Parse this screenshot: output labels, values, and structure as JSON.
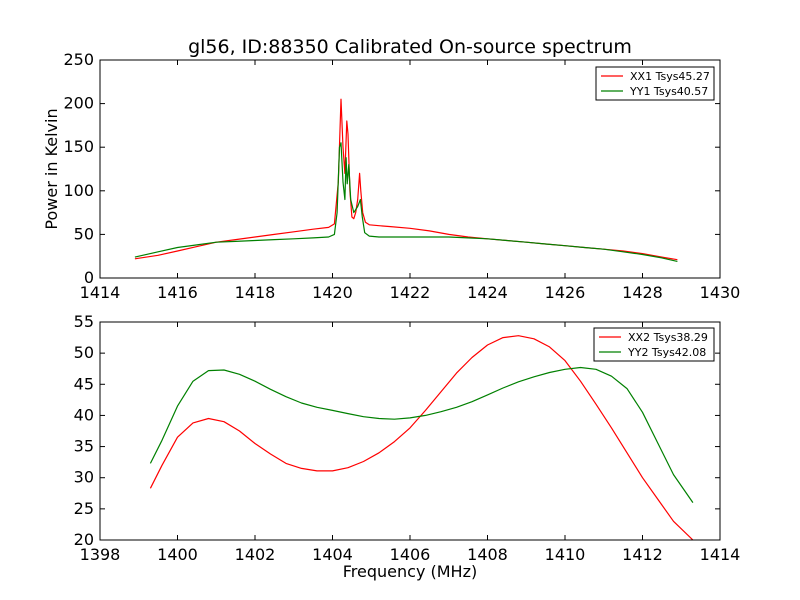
{
  "figure": {
    "title": "gl56, ID:88350 Calibrated On-source spectrum"
  },
  "chart_data": [
    {
      "type": "line",
      "title": "gl56, ID:88350 Calibrated On-source spectrum",
      "xlabel": "",
      "ylabel": "Power in Kelvin",
      "xlim": [
        1414,
        1430
      ],
      "ylim": [
        0,
        250
      ],
      "xticks": [
        "1414",
        "1416",
        "1418",
        "1420",
        "1422",
        "1424",
        "1426",
        "1428",
        "1430"
      ],
      "yticks": [
        "0",
        "50",
        "100",
        "150",
        "200",
        "250"
      ],
      "legend_position": "top-right",
      "grid": false,
      "series": [
        {
          "name": "XX1 Tsys45.27",
          "color": "#ff0000",
          "x": [
            1414.9,
            1415.5,
            1416.0,
            1416.5,
            1417.0,
            1417.5,
            1418.0,
            1418.5,
            1419.0,
            1419.5,
            1419.9,
            1420.05,
            1420.15,
            1420.22,
            1420.27,
            1420.32,
            1420.37,
            1420.4,
            1420.45,
            1420.5,
            1420.55,
            1420.6,
            1420.65,
            1420.7,
            1420.73,
            1420.78,
            1420.85,
            1420.95,
            1421.2,
            1421.5,
            1422.0,
            1422.5,
            1423.0,
            1423.5,
            1424.0,
            1424.5,
            1425.0,
            1425.5,
            1426.0,
            1426.5,
            1427.0,
            1427.5,
            1428.0,
            1428.5,
            1428.9
          ],
          "values": [
            22,
            26,
            31,
            36,
            41,
            44,
            47,
            50,
            53,
            56,
            58,
            62,
            110,
            205,
            150,
            120,
            180,
            165,
            100,
            70,
            68,
            75,
            90,
            120,
            100,
            75,
            64,
            61,
            60,
            59,
            57,
            54,
            50,
            47,
            45,
            43,
            41,
            39,
            37,
            35,
            33,
            31,
            28,
            24,
            21
          ]
        },
        {
          "name": "YY1 Tsys40.57",
          "color": "#008000",
          "x": [
            1414.9,
            1415.5,
            1416.0,
            1416.5,
            1417.0,
            1417.5,
            1418.0,
            1418.5,
            1419.0,
            1419.5,
            1419.9,
            1420.05,
            1420.12,
            1420.18,
            1420.22,
            1420.27,
            1420.32,
            1420.35,
            1420.38,
            1420.42,
            1420.47,
            1420.55,
            1420.65,
            1420.72,
            1420.77,
            1420.83,
            1420.95,
            1421.2,
            1421.5,
            1422.0,
            1422.5,
            1423.0,
            1423.5,
            1424.0,
            1424.5,
            1425.0,
            1425.5,
            1426.0,
            1426.5,
            1427.0,
            1427.5,
            1428.0,
            1428.5,
            1428.9
          ],
          "values": [
            24,
            30,
            35,
            38,
            41,
            42,
            43,
            44,
            45,
            46,
            47,
            50,
            75,
            150,
            155,
            110,
            90,
            138,
            108,
            130,
            90,
            75,
            82,
            90,
            70,
            52,
            48,
            47,
            47,
            47,
            47,
            47,
            46,
            45,
            43,
            41,
            39,
            37,
            35,
            33,
            30,
            27,
            23,
            19
          ]
        }
      ]
    },
    {
      "type": "line",
      "title": "",
      "xlabel": "Frequency (MHz)",
      "ylabel": "",
      "xlim": [
        1398,
        1414
      ],
      "ylim": [
        20,
        55
      ],
      "xticks": [
        "1398",
        "1400",
        "1402",
        "1404",
        "1406",
        "1408",
        "1410",
        "1412",
        "1414"
      ],
      "yticks": [
        "20",
        "25",
        "30",
        "35",
        "40",
        "45",
        "50",
        "55"
      ],
      "legend_position": "top-right",
      "grid": false,
      "series": [
        {
          "name": "XX2 Tsys38.29",
          "color": "#ff0000",
          "x": [
            1399.3,
            1399.6,
            1400.0,
            1400.4,
            1400.8,
            1401.2,
            1401.6,
            1402.0,
            1402.4,
            1402.8,
            1403.2,
            1403.6,
            1404.0,
            1404.4,
            1404.8,
            1405.2,
            1405.6,
            1406.0,
            1406.4,
            1406.8,
            1407.2,
            1407.6,
            1408.0,
            1408.4,
            1408.8,
            1409.2,
            1409.6,
            1410.0,
            1410.4,
            1410.8,
            1411.2,
            1411.6,
            1412.0,
            1412.4,
            1412.8,
            1413.3
          ],
          "values": [
            28.3,
            32.0,
            36.5,
            38.8,
            39.5,
            39.0,
            37.5,
            35.5,
            33.8,
            32.3,
            31.5,
            31.1,
            31.1,
            31.6,
            32.6,
            34.0,
            35.8,
            38.0,
            40.8,
            43.8,
            46.8,
            49.3,
            51.3,
            52.5,
            52.8,
            52.3,
            51.0,
            48.8,
            45.5,
            41.8,
            38.0,
            34.0,
            30.0,
            26.5,
            23.0,
            20.0
          ]
        },
        {
          "name": "YY2 Tsys42.08",
          "color": "#008000",
          "x": [
            1399.3,
            1399.6,
            1400.0,
            1400.4,
            1400.8,
            1401.2,
            1401.6,
            1402.0,
            1402.4,
            1402.8,
            1403.2,
            1403.6,
            1404.0,
            1404.4,
            1404.8,
            1405.2,
            1405.6,
            1406.0,
            1406.4,
            1406.8,
            1407.2,
            1407.6,
            1408.0,
            1408.4,
            1408.8,
            1409.2,
            1409.6,
            1410.0,
            1410.4,
            1410.8,
            1411.2,
            1411.6,
            1412.0,
            1412.4,
            1412.8,
            1413.3
          ],
          "values": [
            32.3,
            36.0,
            41.5,
            45.5,
            47.2,
            47.3,
            46.6,
            45.5,
            44.2,
            43.0,
            42.0,
            41.3,
            40.8,
            40.3,
            39.8,
            39.5,
            39.4,
            39.6,
            40.0,
            40.6,
            41.3,
            42.2,
            43.3,
            44.4,
            45.4,
            46.2,
            46.9,
            47.4,
            47.7,
            47.4,
            46.3,
            44.3,
            40.5,
            35.5,
            30.5,
            26.0
          ]
        }
      ]
    }
  ]
}
